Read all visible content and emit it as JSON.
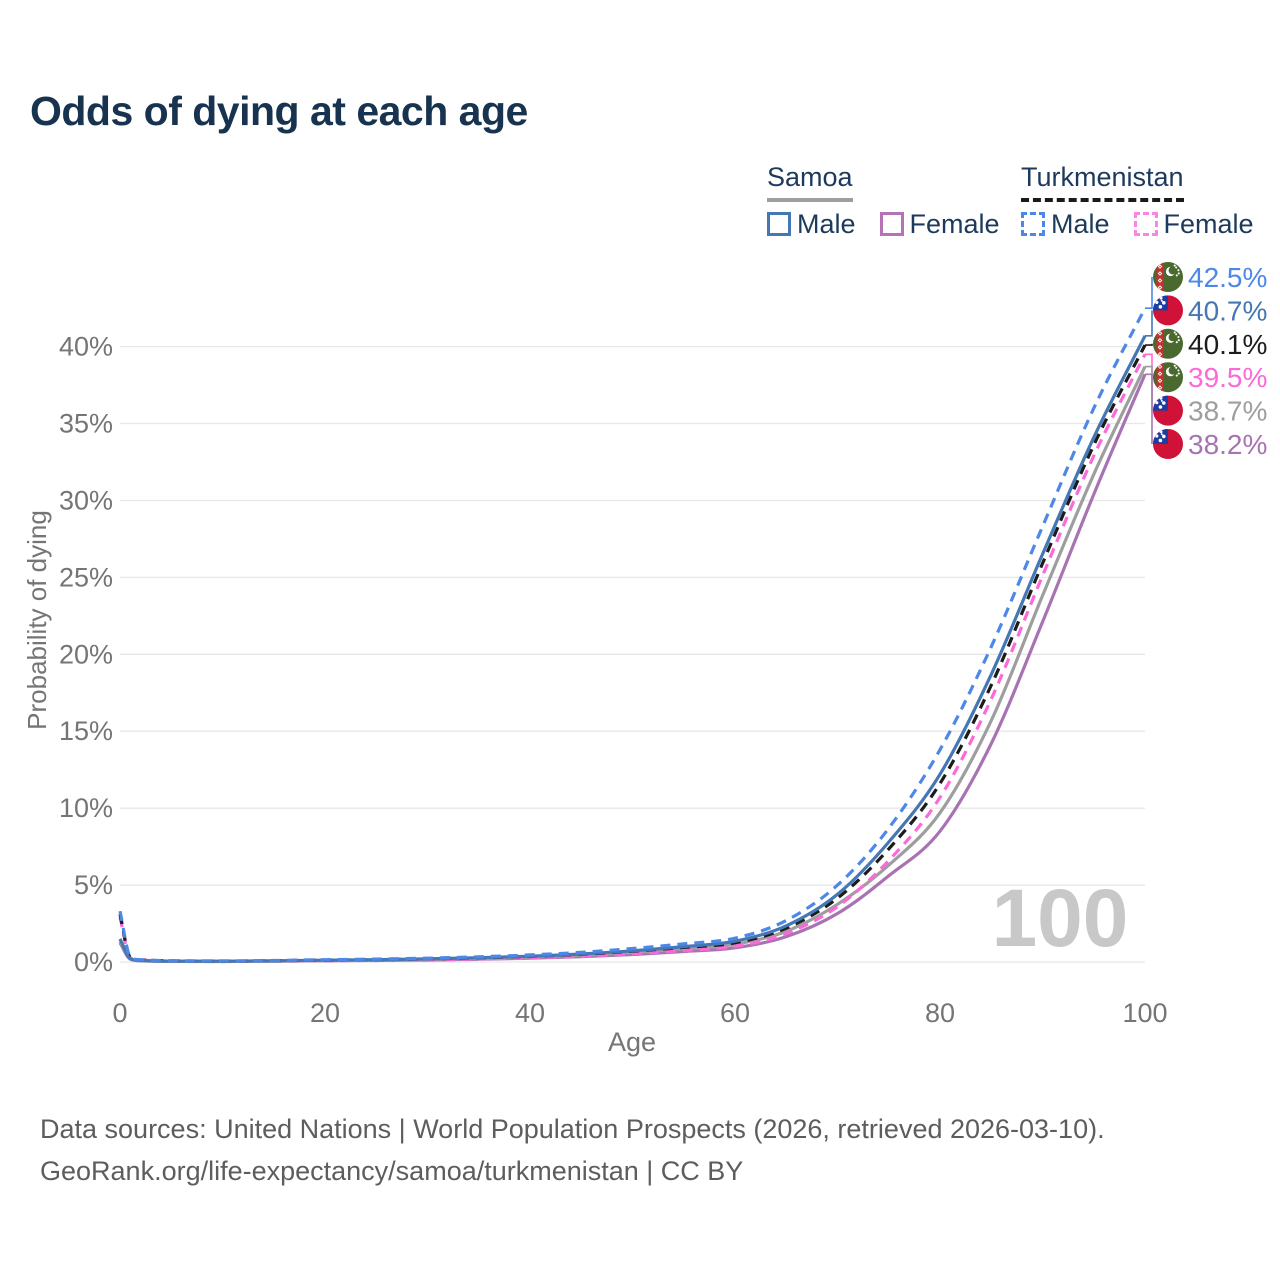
{
  "title": "Odds of dying at each age",
  "legend": {
    "groups": [
      {
        "label": "Samoa",
        "line_style": "solid",
        "underline_color": "#9e9e9e",
        "items": [
          {
            "label": "Male",
            "color": "#4577b4"
          },
          {
            "label": "Female",
            "color": "#b573b5"
          }
        ]
      },
      {
        "label": "Turkmenistan",
        "line_style": "dashed",
        "underline_color": "#1a1a1a",
        "items": [
          {
            "label": "Male",
            "color": "#4d87e8"
          },
          {
            "label": "Female",
            "color": "#fb85e0"
          }
        ]
      }
    ]
  },
  "age_indicator": "100",
  "chart_data": {
    "type": "line",
    "xlabel": "Age",
    "ylabel": "Probability of dying",
    "x_ticks": [
      0,
      20,
      40,
      60,
      80,
      100
    ],
    "y_ticks": [
      "0%",
      "5%",
      "10%",
      "15%",
      "20%",
      "25%",
      "30%",
      "35%",
      "40%"
    ],
    "xlim": [
      0,
      100
    ],
    "ylim_pct": [
      0,
      44
    ],
    "grid": true,
    "x": [
      0,
      1,
      2,
      5,
      10,
      15,
      20,
      25,
      30,
      35,
      40,
      45,
      50,
      55,
      60,
      65,
      70,
      75,
      80,
      85,
      90,
      95,
      100
    ],
    "series": [
      {
        "id": "turkmenistan-male",
        "name": "Turkmenistan Male",
        "country": "turkmenistan",
        "color": "#4d87e8",
        "dashed": true,
        "end_label": "42.5%",
        "values": [
          3.3,
          0.35,
          0.15,
          0.08,
          0.07,
          0.1,
          0.15,
          0.19,
          0.25,
          0.34,
          0.46,
          0.63,
          0.88,
          1.18,
          1.55,
          2.7,
          5.0,
          8.7,
          13.8,
          20.5,
          28.3,
          36.0,
          42.5
        ]
      },
      {
        "id": "samoa-male",
        "name": "Samoa Male",
        "country": "samoa",
        "color": "#4577b4",
        "dashed": false,
        "end_label": "40.7%",
        "values": [
          1.5,
          0.22,
          0.1,
          0.05,
          0.05,
          0.08,
          0.12,
          0.15,
          0.2,
          0.28,
          0.38,
          0.52,
          0.73,
          1.0,
          1.35,
          2.35,
          4.4,
          7.8,
          12.2,
          18.7,
          26.5,
          34.1,
          40.7
        ]
      },
      {
        "id": "turkmenistan-all",
        "name": "Turkmenistan",
        "country": "turkmenistan",
        "color": "#1c1c1c",
        "dashed": true,
        "end_label": "40.1%",
        "values": [
          3.1,
          0.3,
          0.13,
          0.07,
          0.06,
          0.08,
          0.12,
          0.15,
          0.2,
          0.27,
          0.37,
          0.5,
          0.7,
          0.95,
          1.25,
          2.2,
          4.15,
          7.35,
          11.6,
          18.0,
          25.9,
          33.6,
          40.1
        ]
      },
      {
        "id": "turkmenistan-female",
        "name": "Turkmenistan Female",
        "country": "turkmenistan",
        "color": "#fb6ad8",
        "dashed": true,
        "end_label": "39.5%",
        "values": [
          2.9,
          0.28,
          0.12,
          0.06,
          0.05,
          0.07,
          0.09,
          0.11,
          0.15,
          0.2,
          0.28,
          0.38,
          0.54,
          0.75,
          1.02,
          1.85,
          3.6,
          6.6,
          10.7,
          17.1,
          25.1,
          32.9,
          39.5
        ]
      },
      {
        "id": "samoa-all",
        "name": "Samoa",
        "country": "samoa",
        "color": "#9e9e9e",
        "dashed": false,
        "end_label": "38.7%",
        "values": [
          1.35,
          0.2,
          0.09,
          0.045,
          0.04,
          0.06,
          0.1,
          0.13,
          0.17,
          0.23,
          0.32,
          0.44,
          0.62,
          0.85,
          1.15,
          2.0,
          3.75,
          6.3,
          9.7,
          15.7,
          23.8,
          31.7,
          38.7
        ]
      },
      {
        "id": "samoa-female",
        "name": "Samoa Female",
        "country": "samoa",
        "color": "#a873b3",
        "dashed": false,
        "end_label": "38.2%",
        "values": [
          1.25,
          0.18,
          0.08,
          0.04,
          0.035,
          0.05,
          0.08,
          0.1,
          0.13,
          0.18,
          0.25,
          0.35,
          0.49,
          0.68,
          0.92,
          1.65,
          3.15,
          5.6,
          8.5,
          14.2,
          22.1,
          30.4,
          38.2
        ]
      }
    ]
  },
  "flags": {
    "samoa": {
      "field": "#d01239",
      "canton": "#1d3ea0",
      "stars": "#ffffff"
    },
    "turkmenistan": {
      "field": "#4a692e",
      "stripe": "#bf3430",
      "crescent": "#ffffff"
    }
  },
  "footer": {
    "line1": "Data sources: United Nations | World Population Prospects (2026, retrieved 2026-03-10).",
    "line2": "GeoRank.org/life-expectancy/samoa/turkmenistan | CC BY"
  }
}
